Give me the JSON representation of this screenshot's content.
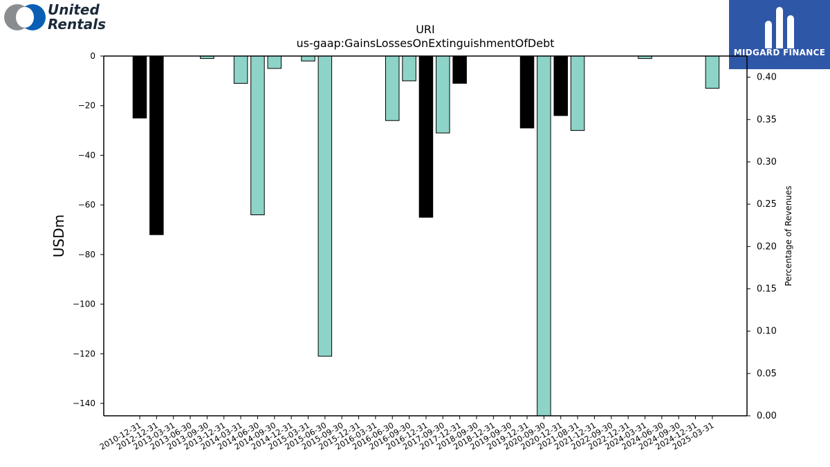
{
  "logos": {
    "left_brand_line1": "United",
    "left_brand_line2": "Rentals",
    "right_brand": "MIDGARD FINANCE"
  },
  "chart_data": {
    "type": "bar",
    "title": "URI",
    "subtitle": "us-gaap:GainsLossesOnExtinguishmentOfDebt",
    "ylabel": "USDm",
    "y2label": "Percentage of Revenues",
    "ylim": [
      -145,
      0
    ],
    "y2lim": [
      0.0,
      0.425
    ],
    "yticks": [
      0,
      -20,
      -40,
      -60,
      -80,
      -100,
      -120,
      -140
    ],
    "y2ticks": [
      "0.00",
      "0.05",
      "0.10",
      "0.15",
      "0.20",
      "0.25",
      "0.30",
      "0.35",
      "0.40"
    ],
    "categories": [
      "2010-12-31",
      "2012-12-31",
      "2013-03-31",
      "2013-06-30",
      "2013-09-30",
      "2013-12-31",
      "2014-03-31",
      "2014-06-30",
      "2014-09-30",
      "2014-12-31",
      "2015-03-31",
      "2015-06-30",
      "2015-09-30",
      "2015-12-31",
      "2016-03-31",
      "2016-06-30",
      "2016-09-30",
      "2016-12-31",
      "2017-09-30",
      "2017-12-31",
      "2018-09-30",
      "2018-12-31",
      "2019-09-30",
      "2019-12-31",
      "2020-09-30",
      "2020-12-31",
      "2021-08-31",
      "2021-12-31",
      "2022-09-30",
      "2022-12-31",
      "2024-03-31",
      "2024-06-30",
      "2024-09-30",
      "2024-12-31",
      "2025-03-31"
    ],
    "series": [
      {
        "color": "#000000",
        "values": [
          -25,
          -72,
          null,
          null,
          null,
          null,
          null,
          null,
          null,
          null,
          null,
          null,
          null,
          null,
          null,
          null,
          null,
          -65,
          null,
          -11,
          null,
          null,
          null,
          -29,
          null,
          -24,
          null,
          null,
          null,
          null,
          null,
          null,
          null,
          null,
          null
        ]
      },
      {
        "color": "#8dd3c7",
        "values": [
          null,
          null,
          null,
          null,
          -1,
          null,
          -11,
          -64,
          -5,
          null,
          -2,
          -121,
          null,
          null,
          null,
          -26,
          -10,
          null,
          -31,
          null,
          null,
          null,
          null,
          null,
          -145,
          null,
          -30,
          null,
          null,
          null,
          -1,
          null,
          null,
          null,
          -13
        ]
      }
    ],
    "grid": false,
    "legend": "none"
  }
}
